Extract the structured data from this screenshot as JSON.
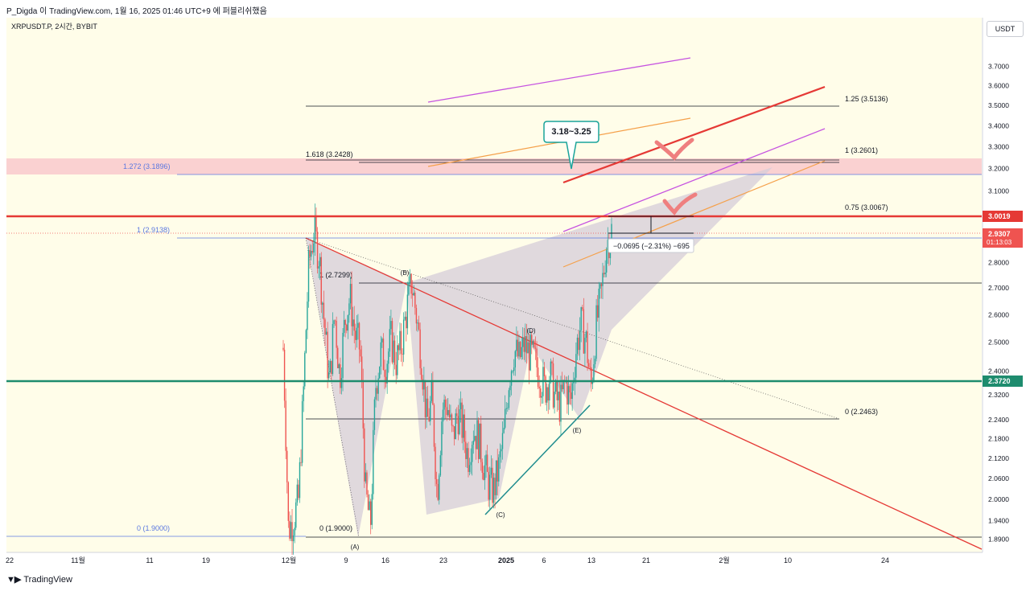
{
  "header": {
    "caption": "P_Digda 이 TradingView.com, 1월 16, 2025 01:46 UTC+9 에 퍼블리쉬했음"
  },
  "symbol_info": "XRPUSDT.P, 2시간, BYBIT",
  "currency_button": "USDT",
  "footer": {
    "brand": "TradingView"
  },
  "colors": {
    "up": "#26a69a",
    "down": "#ef5350",
    "resistance": "#e53935",
    "support": "#1e8c6e",
    "purple": "#c653e0",
    "orange": "#f5a04a",
    "zone": "#f9c9cc",
    "triangle": "#d7cfd8",
    "fib_blue": "#5b78e0",
    "callout": "#1aa39a"
  },
  "chart_data": {
    "type": "candlestick",
    "symbol": "XRPUSDT.P",
    "timeframe": "2시간",
    "exchange": "BYBIT",
    "y_axis": {
      "ticks": [
        "3.7000",
        "3.6000",
        "3.5000",
        "3.4000",
        "3.3000",
        "3.2000",
        "3.1000",
        "2.9000",
        "2.8000",
        "2.7000",
        "2.6000",
        "2.5000",
        "2.4000",
        "2.3200",
        "2.2400",
        "2.1800",
        "2.1200",
        "2.0600",
        "2.0000",
        "1.9400",
        "1.8900"
      ],
      "scale": "log"
    },
    "x_axis": {
      "ticks": [
        "22",
        "11월",
        "11",
        "19",
        "12월",
        "9",
        "16",
        "23",
        "2025",
        "6",
        "13",
        "21",
        "2월",
        "10",
        "24"
      ]
    },
    "price_labels": [
      {
        "value": "3.0019",
        "color": "#e53935"
      },
      {
        "value": "2.9307",
        "sub": "01:13:03",
        "color": "#ef5350"
      },
      {
        "value": "2.3720",
        "color": "#1e8c6e"
      }
    ],
    "fib_levels": [
      {
        "text": "1.25 (3.5136)",
        "value": 3.5136
      },
      {
        "text": "1 (3.2601)",
        "value": 3.2601
      },
      {
        "text": "0.75 (3.0067)",
        "value": 3.0067
      },
      {
        "text": "0 (2.2463)",
        "value": 2.2463
      },
      {
        "text": "1.618 (3.2428)",
        "value": 3.2428
      },
      {
        "text": "1 (2.7299)",
        "value": 2.7299
      },
      {
        "text": "0 (1.9000)",
        "value": 1.9
      },
      {
        "text": "1.272 (3.1896)",
        "value": 3.1896
      },
      {
        "text": "1 (2.9138)",
        "value": 2.9138
      },
      {
        "text": "0 (1.9000)",
        "value": 1.9
      }
    ],
    "wave_labels": [
      "(A)",
      "(B)",
      "(C)",
      "(D)",
      "(E)"
    ],
    "callout": "3.18~3.25",
    "measurement": "−0.0695 (−2.31%) −695",
    "horizontal_lines": [
      {
        "value": 3.0019,
        "label": "resistance"
      },
      {
        "value": 2.372,
        "label": "support"
      }
    ],
    "target_zone": [
      3.1896,
      3.2601
    ],
    "candle_path": [
      [
        2.47,
        2.48
      ],
      [
        1.89,
        1.94
      ],
      [
        1.92,
        1.97
      ],
      [
        1.95,
        2.05
      ],
      [
        2.3,
        2.4
      ],
      [
        2.75,
        2.85
      ],
      [
        2.9,
        2.95
      ],
      [
        2.8,
        2.85
      ],
      [
        2.55,
        2.58
      ],
      [
        2.3,
        2.4
      ],
      [
        2.6,
        2.62
      ],
      [
        2.35,
        2.4
      ],
      [
        2.55,
        2.6
      ],
      [
        2.65,
        2.68
      ],
      [
        2.5,
        2.55
      ],
      [
        2.45,
        2.5
      ],
      [
        2.05,
        2.0
      ],
      [
        1.91,
        1.93
      ],
      [
        2.3,
        2.4
      ],
      [
        2.45,
        2.48
      ],
      [
        2.4,
        2.45
      ],
      [
        2.5,
        2.52
      ],
      [
        2.42,
        2.45
      ],
      [
        2.47,
        2.5
      ],
      [
        2.6,
        2.62
      ],
      [
        2.72,
        2.73
      ],
      [
        2.58,
        2.6
      ],
      [
        2.45,
        2.42
      ],
      [
        2.2,
        2.25
      ],
      [
        2.3,
        2.32
      ],
      [
        1.97,
        2.05
      ],
      [
        2.25,
        2.3
      ],
      [
        2.3,
        2.28
      ],
      [
        2.15,
        2.2
      ],
      [
        2.25,
        2.28
      ],
      [
        2.2,
        2.22
      ],
      [
        2.1,
        2.15
      ],
      [
        2.2,
        2.22
      ],
      [
        2.17,
        2.2
      ],
      [
        2.1,
        2.12
      ],
      [
        2.03,
        2.06
      ],
      [
        2.0,
        2.05
      ],
      [
        2.08,
        2.1
      ],
      [
        2.18,
        2.2
      ],
      [
        2.35,
        2.4
      ],
      [
        2.45,
        2.5
      ],
      [
        2.43,
        2.45
      ],
      [
        2.48,
        2.5
      ],
      [
        2.45,
        2.47
      ],
      [
        2.42,
        2.45
      ],
      [
        2.4,
        2.38
      ],
      [
        2.33,
        2.35
      ],
      [
        2.38,
        2.4
      ],
      [
        2.3,
        2.32
      ],
      [
        2.27,
        2.3
      ],
      [
        2.35,
        2.38
      ],
      [
        2.3,
        2.28
      ],
      [
        2.45,
        2.48
      ],
      [
        2.55,
        2.58
      ],
      [
        2.5,
        2.52
      ],
      [
        2.35,
        2.33
      ],
      [
        2.55,
        2.57
      ],
      [
        2.65,
        2.7
      ],
      [
        2.85,
        2.9
      ],
      [
        2.93,
        2.93
      ]
    ]
  }
}
